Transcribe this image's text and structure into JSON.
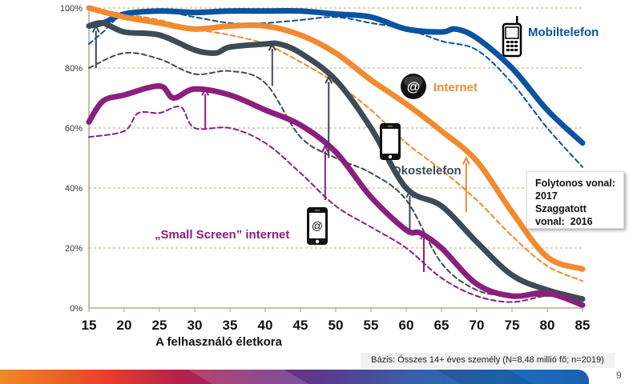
{
  "chart_data": {
    "type": "line",
    "title": "",
    "xlabel": "A felhasználó életkora",
    "ylabel": "",
    "xlim": [
      15,
      85
    ],
    "ylim": [
      0,
      100
    ],
    "x_ticks": [
      "15",
      "20",
      "25",
      "30",
      "35",
      "40",
      "45",
      "50",
      "55",
      "60",
      "65",
      "70",
      "75",
      "80",
      "85"
    ],
    "y_ticks": [
      "0%",
      "20%",
      "40%",
      "60%",
      "80%",
      "100%"
    ],
    "grid": "horizontal dashed",
    "series": [
      {
        "name": "Mobiltelefon",
        "year": "2017",
        "style": "solid",
        "color": "#0b52a0",
        "x": [
          15,
          17,
          20,
          25,
          30,
          35,
          40,
          45,
          50,
          55,
          60,
          65,
          67,
          70,
          75,
          80,
          85
        ],
        "values": [
          94,
          95,
          98,
          99,
          98.5,
          99,
          99,
          99,
          98,
          97,
          93,
          92,
          93,
          90,
          80,
          66,
          55
        ]
      },
      {
        "name": "Mobiltelefon",
        "year": "2016",
        "style": "dashed",
        "color": "#0b52a0",
        "x": [
          15,
          17,
          20,
          25,
          30,
          35,
          40,
          45,
          50,
          55,
          60,
          65,
          70,
          75,
          80,
          85
        ],
        "values": [
          88,
          92,
          98,
          99,
          97,
          95,
          95,
          96,
          97,
          95,
          93,
          89,
          86,
          75,
          60,
          47
        ]
      },
      {
        "name": "Internet",
        "year": "2017",
        "style": "solid",
        "color": "#f28a30",
        "x": [
          15,
          20,
          25,
          30,
          35,
          40,
          45,
          50,
          55,
          60,
          65,
          70,
          75,
          80,
          85
        ],
        "values": [
          100,
          97,
          95,
          93,
          94,
          94,
          91,
          85,
          76,
          68,
          59,
          49,
          32,
          17,
          13
        ]
      },
      {
        "name": "Internet",
        "year": "2016",
        "style": "dashed",
        "color": "#f28a30",
        "x": [
          15,
          20,
          25,
          30,
          35,
          40,
          45,
          50,
          55,
          60,
          65,
          70,
          75,
          80,
          85
        ],
        "values": [
          100,
          98,
          96,
          93,
          91,
          88,
          82,
          75,
          66,
          55,
          46,
          36,
          24,
          14,
          9
        ]
      },
      {
        "name": "Okostelefon",
        "year": "2017",
        "style": "solid",
        "color": "#3e4a55",
        "x": [
          15,
          17,
          20,
          25,
          30,
          33,
          35,
          40,
          42,
          45,
          50,
          55,
          60,
          65,
          70,
          75,
          80,
          85
        ],
        "values": [
          94,
          95,
          92,
          91,
          86,
          85,
          87,
          88,
          88,
          85,
          76,
          60,
          40,
          34,
          22,
          11,
          6,
          3
        ]
      },
      {
        "name": "Okostelefon",
        "year": "2016",
        "style": "dashed",
        "color": "#3e4a55",
        "x": [
          15,
          20,
          25,
          30,
          35,
          40,
          45,
          50,
          55,
          60,
          65,
          70,
          75,
          80,
          85
        ],
        "values": [
          80,
          85,
          83,
          78,
          79,
          75,
          57,
          50,
          45,
          36,
          15,
          6,
          4,
          4,
          3
        ]
      },
      {
        "name": "„Small Screen” internet",
        "year": "2017",
        "style": "solid",
        "color": "#8b1f7e",
        "x": [
          15,
          17,
          20,
          25,
          27,
          30,
          35,
          40,
          45,
          50,
          55,
          60,
          62,
          65,
          70,
          75,
          80,
          85
        ],
        "values": [
          62,
          69,
          71,
          74,
          70,
          73,
          71,
          66,
          61,
          52,
          37,
          26,
          25,
          20,
          8,
          4,
          5,
          1
        ]
      },
      {
        "name": "„Small Screen” internet",
        "year": "2016",
        "style": "dashed",
        "color": "#8b1f7e",
        "x": [
          15,
          20,
          22,
          25,
          28,
          30,
          35,
          40,
          45,
          50,
          55,
          60,
          65,
          70,
          75,
          80,
          85
        ],
        "values": [
          57,
          59,
          65,
          65,
          67,
          60,
          60,
          55,
          45,
          34,
          27,
          20,
          10,
          4,
          2,
          4,
          3
        ]
      }
    ],
    "arrows": [
      {
        "series": "Okostelefon",
        "x": 16,
        "from": 80,
        "to": 94,
        "color": "#3e4a55"
      },
      {
        "series": "Okostelefon",
        "x": 41,
        "from": 74,
        "to": 88,
        "color": "#3e4a55"
      },
      {
        "series": "Okostelefon",
        "x": 49,
        "from": 50,
        "to": 77,
        "color": "#3e4a55"
      },
      {
        "series": "Okostelefon",
        "x": 60.5,
        "from": 25,
        "to": 39,
        "color": "#3e4a55"
      },
      {
        "series": "Small Screen",
        "x": 31.5,
        "from": 60,
        "to": 73,
        "color": "#8b1f7e"
      },
      {
        "series": "Small Screen",
        "x": 48.5,
        "from": 36,
        "to": 54,
        "color": "#8b1f7e"
      },
      {
        "series": "Small Screen",
        "x": 62.5,
        "from": 12,
        "to": 25,
        "color": "#8b1f7e"
      },
      {
        "series": "Internet",
        "x": 68.5,
        "from": 32,
        "to": 50,
        "color": "#f28a30"
      }
    ],
    "annotations": [
      {
        "text": "Mobiltelefon",
        "icon": "feature-phone-icon",
        "color": "#0b52a0"
      },
      {
        "text": "Internet",
        "icon": "at-sign-icon",
        "color": "#f28a30"
      },
      {
        "text": "Okostelefon",
        "icon": "smartphone-icon",
        "color": "#3e4a55"
      },
      {
        "text": "„Small Screen” internet",
        "icon": "smartphone-at-icon",
        "color": "#8b1f7e"
      }
    ],
    "legend": {
      "position": "right",
      "lines": [
        "Folytonos vonal:",
        "2017",
        "Szaggatott",
        "vonal:  2016"
      ]
    }
  },
  "footer": {
    "basis": "Bázis: Összes 14+ éves személy (N=8,48 millió fő; n=2019)",
    "page_number": "9"
  }
}
